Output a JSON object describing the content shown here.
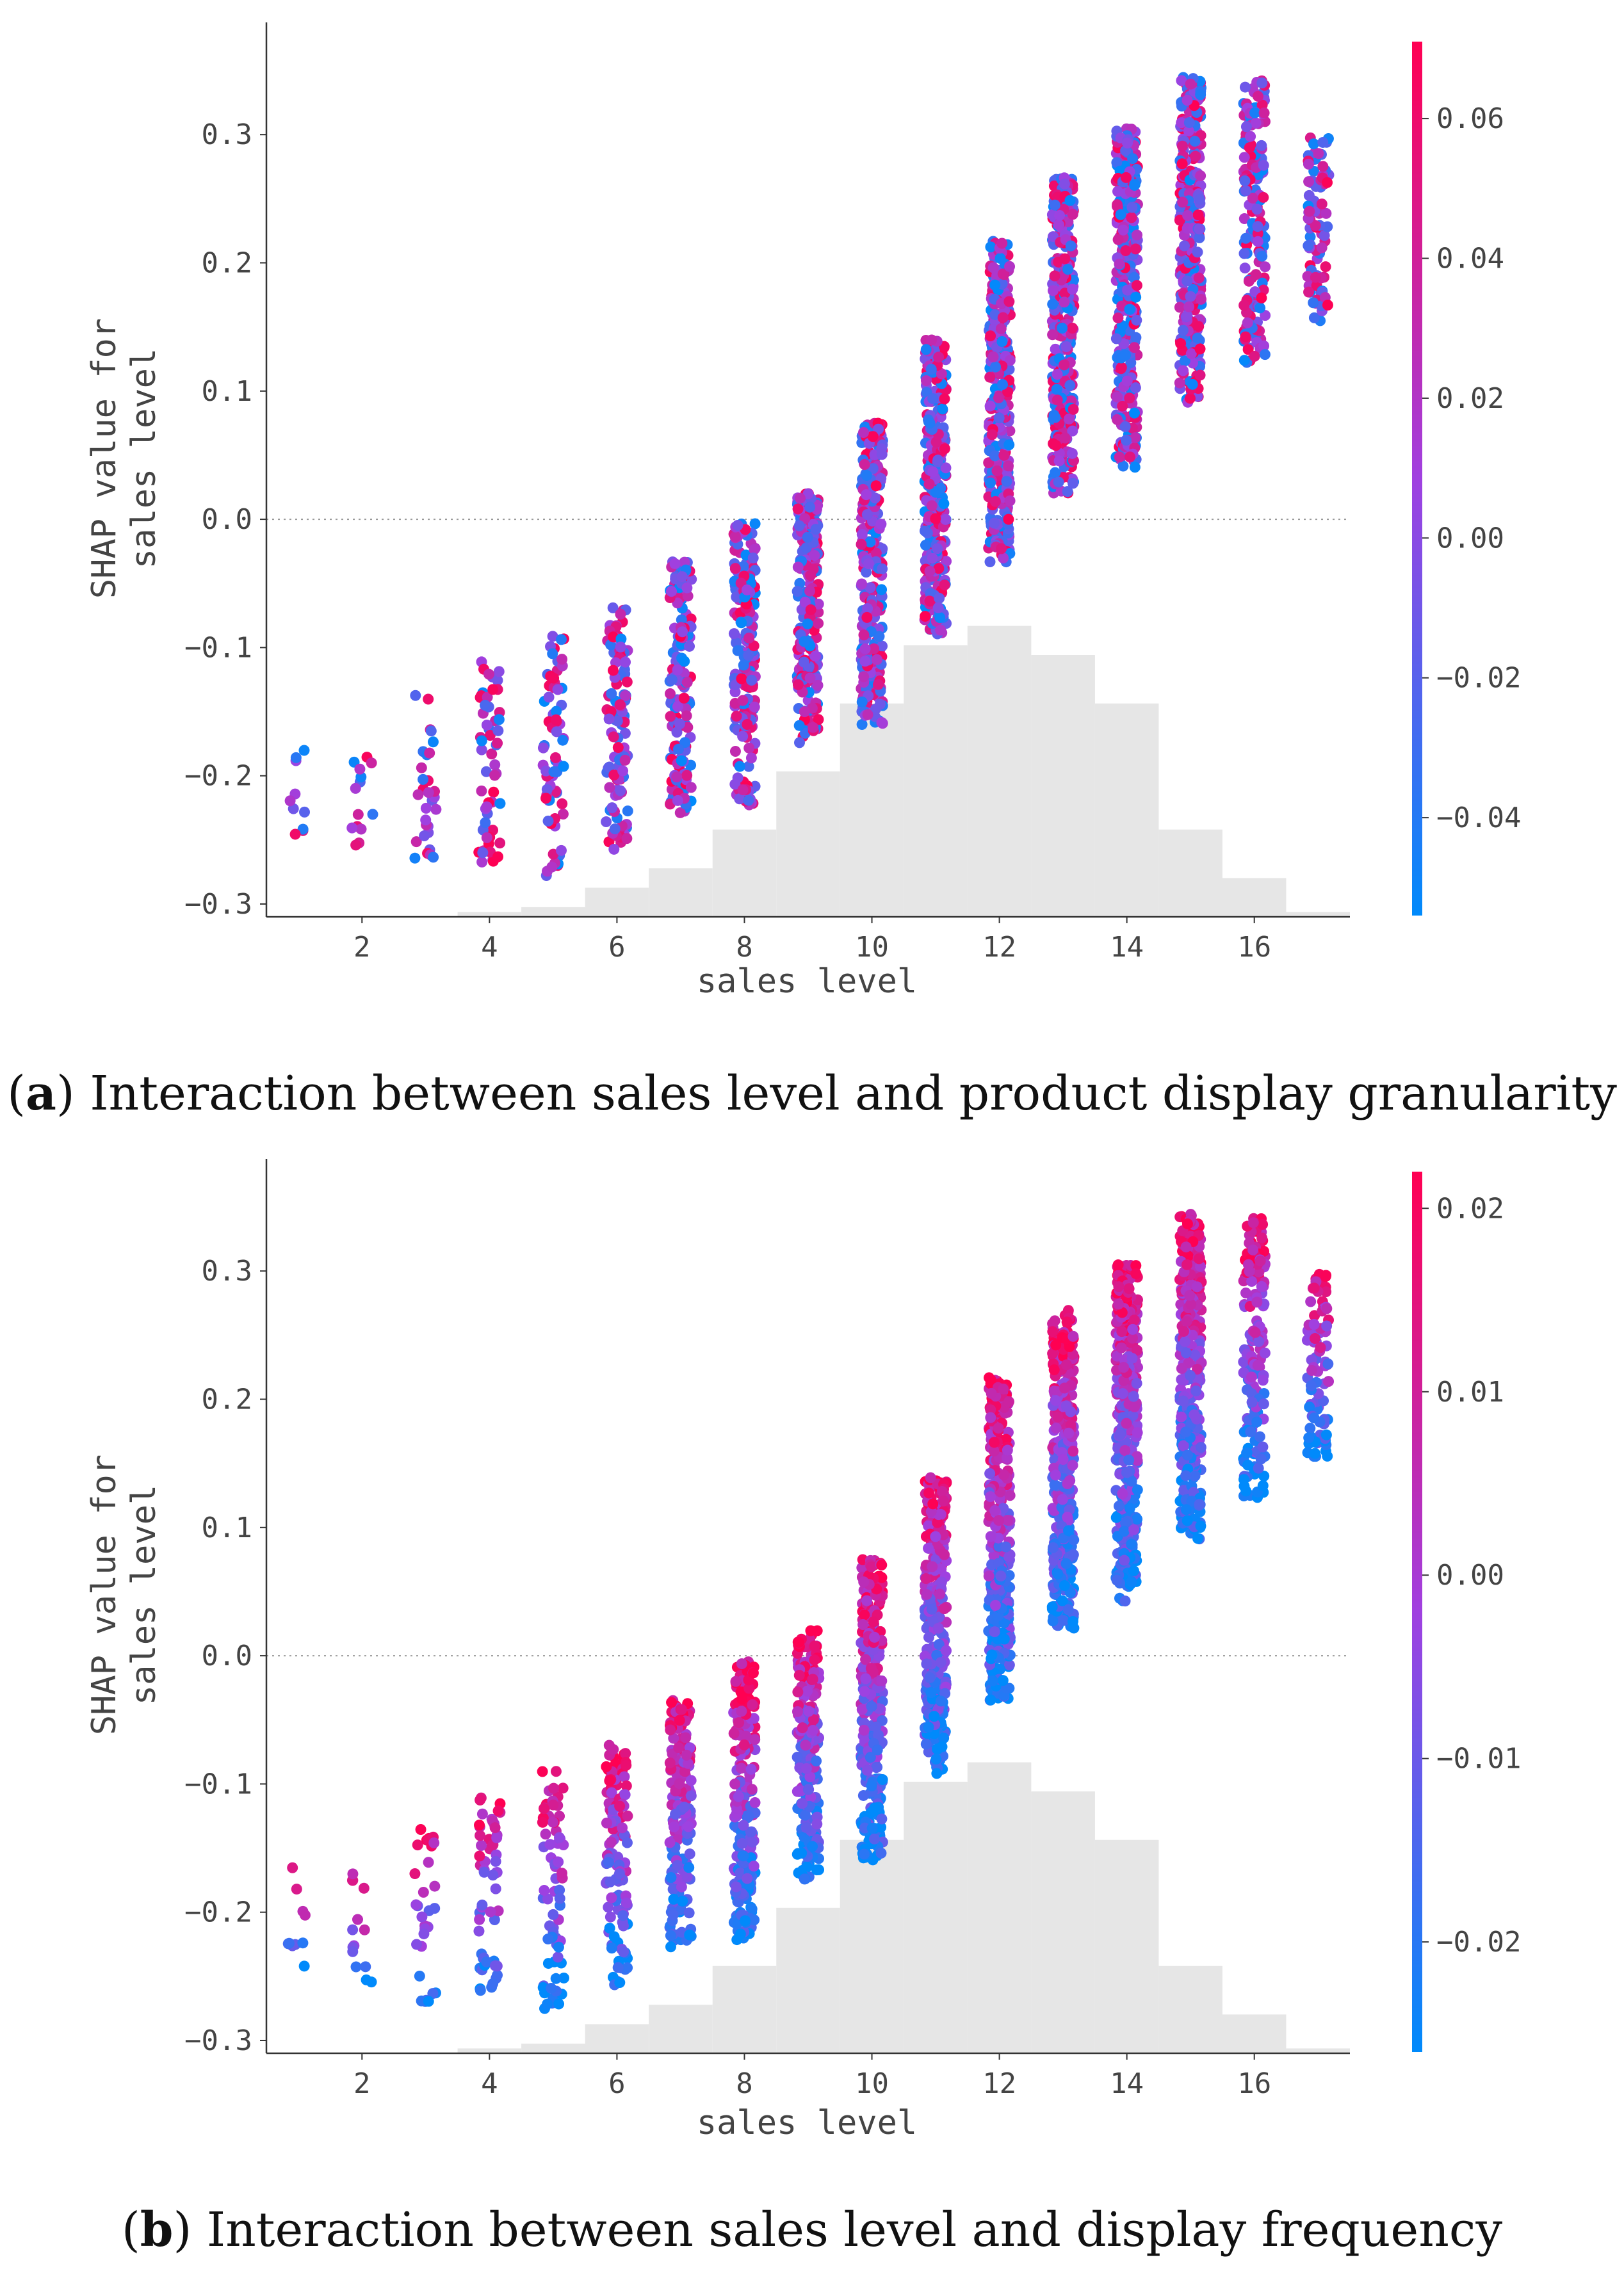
{
  "chart_data": [
    {
      "type": "scatter",
      "panel_letter": "a",
      "caption_text": "Interaction between sales level and product display granularity",
      "xlabel": "sales level",
      "ylabel_line1": "SHAP value for",
      "ylabel_line2": "sales level",
      "x_ticks": [
        "2",
        "4",
        "6",
        "8",
        "10",
        "12",
        "14",
        "16"
      ],
      "y_ticks": [
        "0.3",
        "0.2",
        "0.1",
        "0.0",
        "−0.1",
        "−0.2",
        "−0.3"
      ],
      "xlim": [
        0.5,
        17.5
      ],
      "ylim": [
        -0.31,
        0.375
      ],
      "zero_line": true,
      "colorbar": {
        "ticks": [
          "0.06",
          "0.04",
          "0.02",
          "0.00",
          "−0.02",
          "−0.04"
        ],
        "tick_values": [
          0.06,
          0.04,
          0.02,
          0.0,
          -0.02,
          -0.04
        ],
        "range": [
          -0.054,
          0.071
        ],
        "color_low": "#008afb",
        "color_high": "#ff0052"
      },
      "series": {
        "x": [
          1,
          2,
          3,
          4,
          5,
          6,
          7,
          8,
          9,
          10,
          11,
          12,
          13,
          14,
          15,
          16,
          17
        ],
        "y_min": [
          -0.252,
          -0.258,
          -0.277,
          -0.272,
          -0.278,
          -0.258,
          -0.232,
          -0.223,
          -0.175,
          -0.16,
          -0.095,
          -0.035,
          0.02,
          0.04,
          0.09,
          0.12,
          0.152
        ],
        "y_max": [
          -0.157,
          -0.17,
          -0.135,
          -0.11,
          -0.09,
          -0.069,
          -0.033,
          -0.003,
          0.02,
          0.075,
          0.14,
          0.217,
          0.27,
          0.305,
          0.345,
          0.342,
          0.298
        ],
        "point_counts": [
          10,
          14,
          30,
          55,
          70,
          120,
          160,
          200,
          220,
          260,
          300,
          330,
          350,
          340,
          320,
          160,
          90
        ]
      },
      "histogram": {
        "x": [
          4,
          5,
          6,
          7,
          8,
          9,
          10,
          11,
          12,
          13,
          14,
          15,
          16,
          17
        ],
        "counts": [
          0.01,
          0.02,
          0.06,
          0.1,
          0.18,
          0.3,
          0.44,
          0.56,
          0.6,
          0.54,
          0.44,
          0.18,
          0.08,
          0.01
        ]
      }
    },
    {
      "type": "scatter",
      "panel_letter": "b",
      "caption_text": "Interaction between sales level and display frequency",
      "xlabel": "sales level",
      "ylabel_line1": "SHAP value for",
      "ylabel_line2": "sales level",
      "x_ticks": [
        "2",
        "4",
        "6",
        "8",
        "10",
        "12",
        "14",
        "16"
      ],
      "y_ticks": [
        "0.3",
        "0.2",
        "0.1",
        "0.0",
        "−0.1",
        "−0.2",
        "−0.3"
      ],
      "xlim": [
        0.5,
        17.5
      ],
      "ylim": [
        -0.31,
        0.375
      ],
      "zero_line": true,
      "colorbar": {
        "ticks": [
          "0.02",
          "0.01",
          "0.00",
          "−0.01",
          "−0.02"
        ],
        "tick_values": [
          0.02,
          0.01,
          0.0,
          -0.01,
          -0.02
        ],
        "range": [
          -0.026,
          0.022
        ],
        "color_low": "#008afb",
        "color_high": "#ff0052"
      },
      "series": {
        "x": [
          1,
          2,
          3,
          4,
          5,
          6,
          7,
          8,
          9,
          10,
          11,
          12,
          13,
          14,
          15,
          16,
          17
        ],
        "y_min": [
          -0.252,
          -0.258,
          -0.277,
          -0.272,
          -0.278,
          -0.258,
          -0.232,
          -0.223,
          -0.175,
          -0.16,
          -0.095,
          -0.035,
          0.02,
          0.04,
          0.09,
          0.12,
          0.152
        ],
        "y_max": [
          -0.157,
          -0.17,
          -0.135,
          -0.11,
          -0.09,
          -0.069,
          -0.033,
          -0.003,
          0.02,
          0.075,
          0.14,
          0.217,
          0.27,
          0.305,
          0.345,
          0.342,
          0.298
        ],
        "point_counts": [
          10,
          14,
          30,
          55,
          70,
          120,
          160,
          200,
          220,
          260,
          300,
          330,
          350,
          340,
          320,
          160,
          90
        ]
      },
      "histogram": {
        "x": [
          4,
          5,
          6,
          7,
          8,
          9,
          10,
          11,
          12,
          13,
          14,
          15,
          16,
          17
        ],
        "counts": [
          0.01,
          0.02,
          0.06,
          0.1,
          0.18,
          0.3,
          0.44,
          0.56,
          0.6,
          0.54,
          0.44,
          0.18,
          0.08,
          0.01
        ]
      }
    }
  ]
}
